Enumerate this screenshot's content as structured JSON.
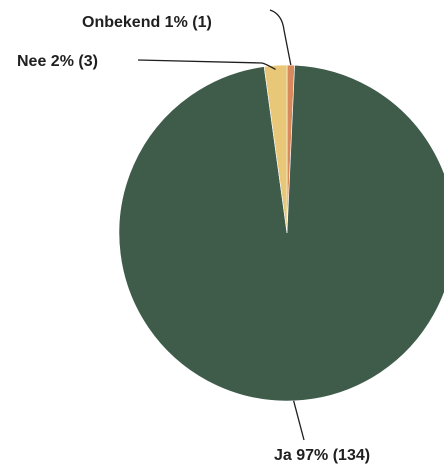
{
  "chart_data": {
    "type": "pie",
    "title": "",
    "slices": [
      {
        "label": "Onbekend 1% (1)",
        "category": "Onbekend",
        "percent": 1,
        "count": 1,
        "color": "#d98a5c"
      },
      {
        "label": "Ja 97% (134)",
        "category": "Ja",
        "percent": 97,
        "count": 134,
        "color": "#3f5c4b"
      },
      {
        "label": "Nee 2% (3)",
        "category": "Nee",
        "percent": 2,
        "count": 3,
        "color": "#e8c878"
      }
    ]
  }
}
